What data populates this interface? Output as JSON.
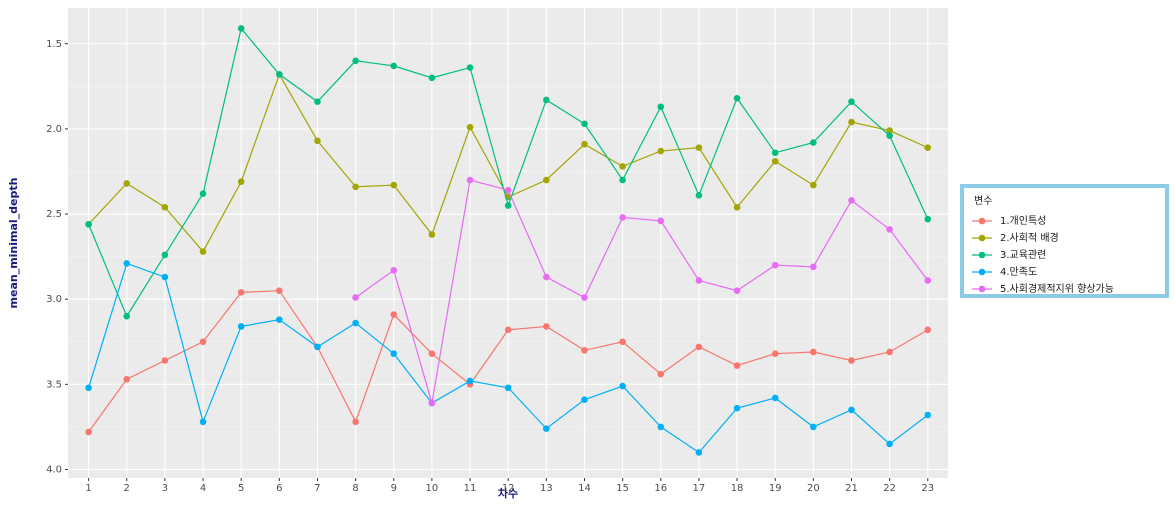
{
  "chart_data": {
    "type": "line",
    "x_label": "차수",
    "y_label": "mean_minimal_depth",
    "categories": [
      "1",
      "2",
      "3",
      "4",
      "5",
      "6",
      "7",
      "8",
      "9",
      "10",
      "11",
      "12",
      "13",
      "14",
      "15",
      "16",
      "17",
      "18",
      "19",
      "20",
      "21",
      "22",
      "23"
    ],
    "ylim": [
      1.29,
      4.05
    ],
    "y_reversed": true,
    "yticks": [
      1.5,
      {
        "value": 2,
        "label": "2.0"
      },
      2.5,
      {
        "value": 3,
        "label": "3.0"
      },
      3.5,
      {
        "value": 4,
        "label": "4.0"
      }
    ],
    "grid": true,
    "legend_title": "변수",
    "legend_position": "right",
    "series": [
      {
        "name": "1.개인특성",
        "color": "#F8766D",
        "values": [
          3.78,
          3.47,
          3.36,
          3.25,
          2.96,
          2.95,
          3.28,
          3.72,
          3.09,
          3.32,
          3.5,
          3.18,
          3.16,
          3.3,
          3.25,
          3.44,
          3.28,
          3.39,
          3.32,
          3.31,
          3.36,
          3.31,
          3.18
        ]
      },
      {
        "name": "2.사회적 배경",
        "color": "#A3A500",
        "values": [
          2.56,
          2.32,
          2.46,
          2.72,
          2.31,
          1.68,
          2.07,
          2.34,
          2.33,
          2.62,
          1.99,
          2.4,
          2.3,
          2.09,
          2.22,
          2.13,
          2.11,
          2.46,
          2.19,
          2.33,
          1.96,
          2.01,
          2.11
        ]
      },
      {
        "name": "3.교육관련",
        "color": "#00BF7D",
        "values": [
          2.56,
          3.1,
          2.74,
          2.38,
          1.41,
          1.68,
          1.84,
          1.6,
          1.63,
          1.7,
          1.64,
          2.45,
          1.83,
          1.97,
          2.3,
          1.87,
          2.39,
          1.82,
          2.14,
          2.08,
          1.84,
          2.04,
          2.53
        ]
      },
      {
        "name": "4.만족도",
        "color": "#00B0F6",
        "values": [
          3.52,
          2.79,
          2.87,
          3.72,
          3.16,
          3.12,
          3.28,
          3.14,
          3.32,
          3.61,
          3.48,
          3.52,
          3.76,
          3.59,
          3.51,
          3.75,
          3.9,
          3.64,
          3.58,
          3.75,
          3.65,
          3.85,
          3.68
        ]
      },
      {
        "name": "5.사회경제적지위 향상가능",
        "color": "#E76BF3",
        "values": [
          null,
          null,
          null,
          null,
          null,
          null,
          null,
          2.99,
          2.83,
          3.61,
          2.3,
          2.36,
          2.87,
          2.99,
          2.52,
          2.54,
          2.89,
          2.95,
          2.8,
          2.81,
          2.42,
          2.59,
          2.89
        ]
      }
    ]
  }
}
